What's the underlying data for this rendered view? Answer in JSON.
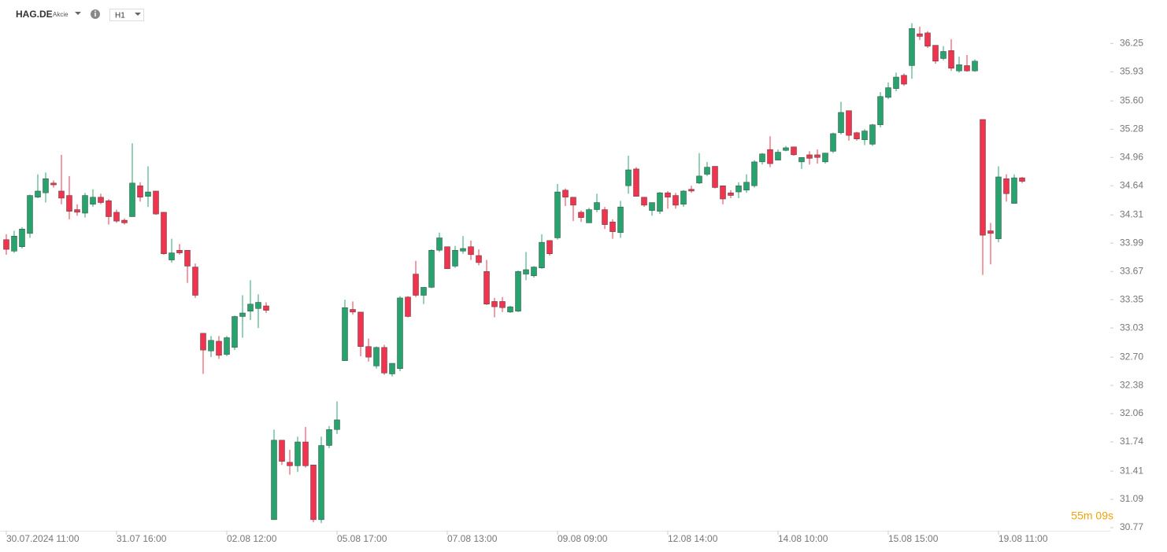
{
  "header": {
    "symbol": "HAG.DE",
    "asset_type": "Akcie",
    "timeframe": "H1"
  },
  "countdown": "55m 09s",
  "chart_data": {
    "type": "candlestick",
    "categories": [
      "30.07.2024 11:00",
      null,
      null,
      null,
      null,
      null,
      null,
      null,
      null,
      null,
      null,
      null,
      null,
      null,
      "31.07 16:00",
      null,
      null,
      null,
      null,
      null,
      null,
      null,
      null,
      null,
      null,
      null,
      null,
      null,
      "02.08 12:00",
      null,
      null,
      null,
      null,
      null,
      null,
      null,
      null,
      null,
      null,
      null,
      null,
      null,
      "05.08 17:00",
      null,
      null,
      null,
      null,
      null,
      null,
      null,
      null,
      null,
      null,
      null,
      null,
      null,
      "07.08 13:00",
      null,
      null,
      null,
      null,
      null,
      null,
      null,
      null,
      null,
      null,
      null,
      null,
      null,
      "09.08 09:00",
      null,
      null,
      null,
      null,
      null,
      null,
      null,
      null,
      null,
      null,
      null,
      null,
      null,
      "12.08 14:00",
      null,
      null,
      null,
      null,
      null,
      null,
      null,
      null,
      null,
      null,
      null,
      null,
      null,
      "14.08 10:00",
      null,
      null,
      null,
      null,
      null,
      null,
      null,
      null,
      null,
      null,
      null,
      null,
      null,
      "15.08 15:00",
      null,
      null,
      null,
      null,
      null,
      null,
      null,
      null,
      null,
      null,
      null,
      null,
      null,
      "19.08 11:00",
      null,
      null,
      null
    ],
    "open": [
      34.03,
      33.9,
      33.95,
      34.1,
      34.51,
      34.56,
      34.67,
      34.58,
      34.53,
      34.37,
      34.33,
      34.43,
      34.51,
      34.47,
      34.34,
      34.25,
      34.29,
      34.64,
      34.52,
      34.58,
      34.34,
      33.8,
      33.91,
      33.91,
      33.72,
      32.97,
      32.77,
      32.88,
      32.73,
      32.81,
      33.16,
      33.22,
      33.25,
      33.28,
      30.86,
      31.76,
      31.51,
      31.47,
      31.74,
      31.48,
      30.86,
      31.7,
      31.88,
      32.66,
      33.24,
      33.21,
      32.82,
      32.6,
      32.81,
      32.51,
      32.57,
      33.38,
      33.64,
      33.4,
      33.49,
      33.91,
      33.95,
      33.73,
      33.9,
      33.95,
      33.85,
      33.67,
      33.33,
      33.33,
      33.21,
      33.22,
      33.64,
      33.62,
      33.71,
      34.02,
      34.05,
      34.59,
      34.51,
      34.34,
      34.22,
      34.37,
      34.37,
      34.23,
      34.11,
      34.64,
      34.83,
      34.51,
      34.36,
      34.35,
      34.56,
      34.53,
      34.43,
      34.6,
      34.67,
      34.77,
      34.86,
      34.64,
      34.56,
      34.57,
      34.59,
      34.64,
      34.91,
      35.05,
      34.93,
      35.04,
      35.08,
      34.91,
      34.99,
      34.99,
      34.91,
      35.03,
      35.24,
      35.49,
      35.24,
      35.16,
      35.11,
      35.33,
      35.64,
      35.74,
      35.89,
      36.0,
      36.36,
      36.37,
      36.23,
      36.08,
      36.17,
      35.94,
      36.0,
      35.94,
      35.39,
      34.13,
      34.04,
      34.72,
      34.44,
      34.73
    ],
    "high": [
      34.09,
      34.13,
      34.17,
      34.54,
      34.77,
      34.79,
      34.7,
      34.99,
      34.75,
      34.43,
      34.56,
      34.6,
      34.55,
      34.49,
      34.37,
      34.27,
      35.12,
      34.68,
      34.86,
      34.58,
      34.34,
      34.04,
      33.98,
      33.91,
      33.76,
      32.97,
      32.94,
      32.94,
      32.94,
      33.17,
      33.4,
      33.57,
      33.41,
      33.32,
      31.88,
      31.76,
      31.65,
      31.8,
      31.91,
      31.48,
      31.8,
      31.92,
      32.2,
      33.35,
      33.33,
      33.21,
      32.91,
      32.82,
      32.84,
      32.63,
      33.39,
      33.39,
      33.79,
      33.49,
      33.92,
      34.11,
      33.95,
      33.96,
      34.07,
      34.02,
      33.92,
      33.8,
      33.37,
      33.38,
      33.28,
      33.68,
      33.89,
      33.73,
      34.09,
      34.02,
      34.66,
      34.61,
      34.51,
      34.36,
      34.39,
      34.55,
      34.4,
      34.26,
      34.47,
      34.98,
      34.85,
      34.51,
      34.45,
      34.57,
      34.58,
      34.56,
      34.59,
      34.64,
      35.01,
      34.91,
      34.86,
      34.64,
      34.59,
      34.68,
      34.77,
      34.93,
      35.01,
      35.2,
      35.05,
      35.09,
      35.08,
      34.96,
      35.03,
      35.05,
      35.01,
      35.24,
      35.59,
      35.49,
      35.25,
      35.28,
      35.34,
      35.7,
      35.81,
      35.92,
      35.91,
      36.48,
      36.44,
      36.39,
      36.23,
      36.22,
      36.3,
      36.1,
      36.12,
      36.07,
      35.39,
      34.22,
      34.86,
      34.77,
      34.77,
      34.74
    ],
    "low": [
      33.86,
      33.88,
      33.93,
      34.05,
      34.5,
      34.45,
      34.62,
      34.43,
      34.26,
      34.3,
      34.28,
      34.4,
      34.43,
      34.2,
      34.22,
      34.2,
      34.29,
      34.46,
      34.4,
      34.31,
      33.86,
      33.77,
      33.86,
      33.54,
      33.37,
      32.51,
      32.7,
      32.68,
      32.71,
      32.78,
      32.92,
      33.12,
      33.03,
      33.2,
      30.86,
      31.48,
      31.37,
      31.4,
      31.45,
      30.83,
      30.82,
      31.67,
      31.83,
      32.66,
      33.18,
      32.71,
      32.65,
      32.57,
      32.5,
      32.48,
      32.54,
      33.15,
      33.38,
      33.3,
      33.48,
      33.89,
      33.7,
      33.71,
      33.87,
      33.8,
      33.74,
      33.29,
      33.15,
      33.21,
      33.2,
      33.21,
      33.57,
      33.6,
      33.7,
      33.85,
      34.03,
      34.41,
      34.24,
      34.23,
      34.22,
      34.34,
      34.15,
      34.04,
      34.05,
      34.55,
      34.52,
      34.4,
      34.3,
      34.32,
      34.38,
      34.38,
      34.4,
      34.56,
      34.66,
      34.75,
      34.61,
      34.43,
      34.5,
      34.5,
      34.56,
      34.62,
      34.88,
      34.85,
      34.93,
      35.03,
      34.98,
      34.83,
      34.88,
      34.89,
      34.89,
      35.01,
      35.22,
      35.15,
      35.15,
      35.1,
      35.09,
      35.3,
      35.62,
      35.71,
      35.77,
      35.85,
      36.29,
      36.2,
      36.02,
      36.06,
      35.94,
      35.92,
      35.93,
      35.93,
      33.63,
      33.75,
      34.0,
      34.46,
      34.44,
      34.67
    ],
    "close": [
      33.92,
      34.07,
      34.15,
      34.53,
      34.58,
      34.72,
      34.65,
      34.5,
      34.35,
      34.34,
      34.53,
      34.51,
      34.45,
      34.29,
      34.24,
      34.22,
      34.67,
      34.51,
      34.57,
      34.32,
      33.87,
      33.88,
      33.88,
      33.73,
      33.4,
      32.78,
      32.89,
      32.72,
      32.92,
      33.16,
      33.2,
      33.3,
      33.32,
      33.23,
      31.76,
      31.52,
      31.47,
      31.74,
      31.47,
      30.86,
      31.7,
      31.88,
      31.99,
      33.26,
      33.21,
      32.82,
      32.7,
      32.81,
      32.52,
      32.63,
      33.37,
      33.16,
      33.4,
      33.49,
      33.91,
      34.05,
      33.7,
      33.91,
      33.93,
      33.86,
      33.77,
      33.3,
      33.27,
      33.26,
      33.27,
      33.67,
      33.69,
      33.72,
      34.0,
      33.87,
      34.57,
      34.51,
      34.42,
      34.28,
      34.37,
      34.45,
      34.2,
      34.12,
      34.4,
      34.82,
      34.52,
      34.42,
      34.45,
      34.56,
      34.51,
      34.42,
      34.58,
      34.58,
      34.75,
      34.85,
      34.62,
      34.49,
      34.53,
      34.64,
      34.68,
      34.91,
      35.0,
      34.89,
      35.02,
      35.07,
      34.99,
      34.96,
      34.95,
      34.96,
      35.01,
      35.23,
      35.47,
      35.21,
      35.17,
      35.26,
      35.33,
      35.65,
      35.75,
      35.87,
      35.79,
      36.42,
      36.33,
      36.22,
      36.05,
      36.16,
      35.97,
      36.01,
      35.94,
      36.05,
      34.08,
      34.1,
      34.74,
      34.55,
      34.73,
      34.69
    ],
    "up_color": "#26a46e",
    "down_color": "#f2334d",
    "ylim": [
      30.77,
      36.52
    ],
    "yticks": [
      36.25,
      35.93,
      {
        "value": 35.6,
        "label": "35.60"
      },
      35.28,
      34.96,
      34.64,
      34.31,
      33.99,
      33.67,
      33.35,
      33.03,
      {
        "value": 32.7,
        "label": "32.70"
      },
      32.38,
      32.06,
      31.74,
      31.41,
      31.09,
      30.77
    ]
  }
}
